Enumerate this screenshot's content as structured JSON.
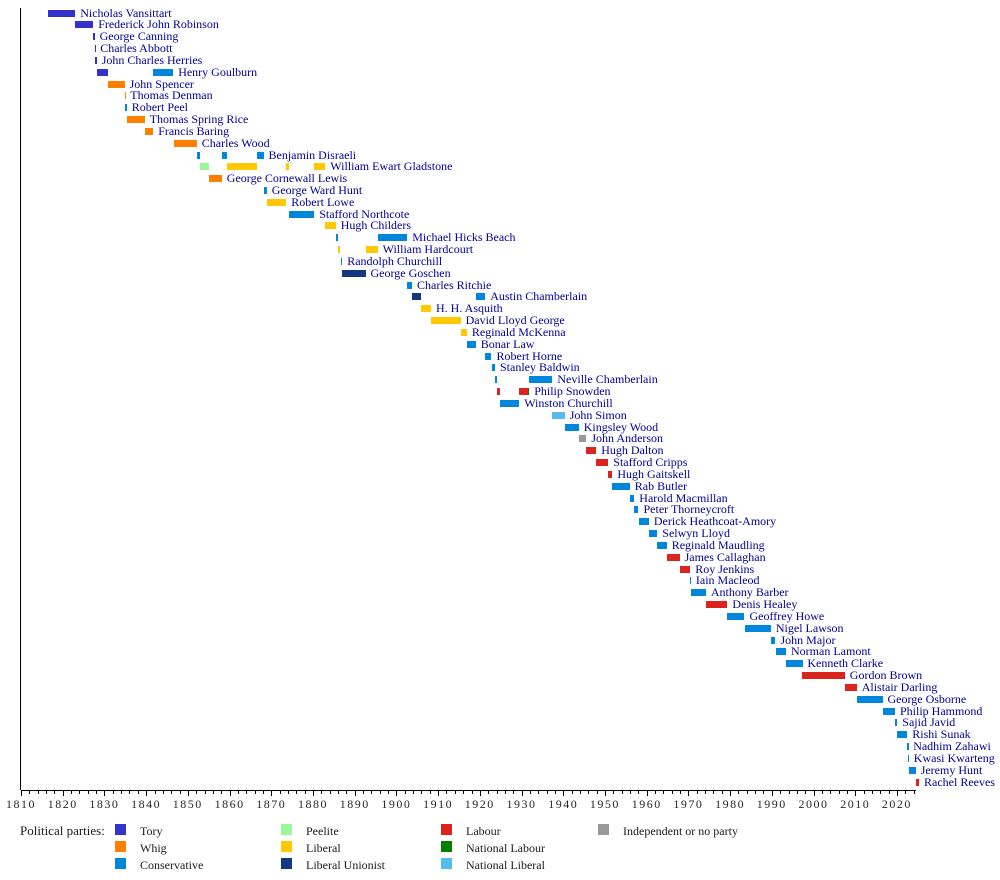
{
  "colors": {
    "name_text": "#000099",
    "axis_text": "#262626",
    "legend_text": "#1a1a1a",
    "axis_line": "#000000"
  },
  "chart_data": {
    "type": "bar",
    "subtype": "timeline-gantt",
    "title": "",
    "xlabel": "",
    "ylabel": "",
    "x_axis": {
      "min": 1810,
      "max": 2025,
      "minor_tick_step": 2,
      "tick_labels": [
        "1810",
        "1820",
        "1830",
        "1840",
        "1850",
        "1860",
        "1870",
        "1880",
        "1890",
        "1900",
        "1910",
        "1920",
        "1930",
        "1940",
        "1950",
        "1960",
        "1970",
        "1980",
        "1990",
        "2000",
        "2010",
        "2020"
      ]
    },
    "legend": {
      "title": "Political parties:",
      "columns": [
        [
          "Tory",
          "Whig",
          "Conservative"
        ],
        [
          "Peelite",
          "Liberal",
          "Liberal Unionist"
        ],
        [
          "Labour",
          "National Labour",
          "National Liberal"
        ],
        [
          "Independent or no party"
        ]
      ]
    },
    "parties": {
      "Tory": "#3333CC",
      "Whig": "#FF7F00",
      "Conservative": "#0087DC",
      "Peelite": "#99F999",
      "Liberal": "#FFC800",
      "Liberal Unionist": "#14387F",
      "Labour": "#DC241F",
      "National Labour": "#008000",
      "National Liberal": "#56BCEC",
      "Independent or no party": "#999999"
    },
    "chancellors": [
      {
        "name": "Nicholas Vansittart",
        "terms": [
          {
            "party": "Tory",
            "start": 1816.5,
            "end": 1823.0
          }
        ]
      },
      {
        "name": "Frederick John Robinson",
        "terms": [
          {
            "party": "Tory",
            "start": 1823.0,
            "end": 1827.3
          }
        ]
      },
      {
        "name": "George Canning",
        "terms": [
          {
            "party": "Tory",
            "start": 1827.3,
            "end": 1827.65
          }
        ]
      },
      {
        "name": "Charles Abbott",
        "terms": [
          {
            "party": "Tory",
            "start": 1827.65,
            "end": 1827.8
          }
        ]
      },
      {
        "name": "John Charles Herries",
        "terms": [
          {
            "party": "Tory",
            "start": 1827.8,
            "end": 1828.15
          }
        ]
      },
      {
        "name": "Henry Goulburn",
        "terms": [
          {
            "party": "Tory",
            "start": 1828.15,
            "end": 1830.9
          },
          {
            "party": "Conservative",
            "start": 1841.7,
            "end": 1846.5
          }
        ]
      },
      {
        "name": "John Spencer",
        "terms": [
          {
            "party": "Whig",
            "start": 1830.9,
            "end": 1834.85
          }
        ]
      },
      {
        "name": "Thomas Denman",
        "terms": [
          {
            "party": "Whig",
            "start": 1834.85,
            "end": 1835.0
          }
        ]
      },
      {
        "name": "Robert Peel",
        "terms": [
          {
            "party": "Conservative",
            "start": 1834.95,
            "end": 1835.35
          }
        ]
      },
      {
        "name": "Thomas Spring Rice",
        "terms": [
          {
            "party": "Whig",
            "start": 1835.35,
            "end": 1839.65
          }
        ]
      },
      {
        "name": "Francis Baring",
        "terms": [
          {
            "party": "Whig",
            "start": 1839.65,
            "end": 1841.7
          }
        ]
      },
      {
        "name": "Charles Wood",
        "terms": [
          {
            "party": "Whig",
            "start": 1846.55,
            "end": 1852.15
          }
        ]
      },
      {
        "name": "Benjamin Disraeli",
        "terms": [
          {
            "party": "Conservative",
            "start": 1852.15,
            "end": 1852.95
          },
          {
            "party": "Conservative",
            "start": 1858.15,
            "end": 1859.45
          },
          {
            "party": "Conservative",
            "start": 1866.5,
            "end": 1868.15
          }
        ]
      },
      {
        "name": "William Ewart Gladstone",
        "terms": [
          {
            "party": "Peelite",
            "start": 1852.95,
            "end": 1855.1
          },
          {
            "party": "Liberal",
            "start": 1859.45,
            "end": 1866.5
          },
          {
            "party": "Liberal",
            "start": 1873.6,
            "end": 1874.15
          },
          {
            "party": "Liberal",
            "start": 1880.3,
            "end": 1882.95
          }
        ]
      },
      {
        "name": "George Cornewall Lewis",
        "terms": [
          {
            "party": "Whig",
            "start": 1855.1,
            "end": 1858.15
          }
        ]
      },
      {
        "name": "George Ward Hunt",
        "terms": [
          {
            "party": "Conservative",
            "start": 1868.15,
            "end": 1868.9
          }
        ]
      },
      {
        "name": "Robert Lowe",
        "terms": [
          {
            "party": "Liberal",
            "start": 1868.9,
            "end": 1873.6
          }
        ]
      },
      {
        "name": "Stafford Northcote",
        "terms": [
          {
            "party": "Conservative",
            "start": 1874.15,
            "end": 1880.3
          }
        ]
      },
      {
        "name": "Hugh Childers",
        "terms": [
          {
            "party": "Liberal",
            "start": 1882.95,
            "end": 1885.45
          }
        ]
      },
      {
        "name": "Michael Hicks Beach",
        "terms": [
          {
            "party": "Conservative",
            "start": 1885.45,
            "end": 1886.1
          },
          {
            "party": "Conservative",
            "start": 1895.5,
            "end": 1902.6
          }
        ]
      },
      {
        "name": "William Hardcourt",
        "terms": [
          {
            "party": "Liberal",
            "start": 1886.1,
            "end": 1886.6
          },
          {
            "party": "Liberal",
            "start": 1892.6,
            "end": 1895.5
          }
        ]
      },
      {
        "name": "Randolph Churchill",
        "terms": [
          {
            "party": "Conservative",
            "start": 1886.6,
            "end": 1887.0
          }
        ]
      },
      {
        "name": "George Goschen",
        "terms": [
          {
            "party": "Liberal Unionist",
            "start": 1887.0,
            "end": 1892.6
          }
        ]
      },
      {
        "name": "Charles Ritchie",
        "terms": [
          {
            "party": "Conservative",
            "start": 1902.6,
            "end": 1903.75
          }
        ]
      },
      {
        "name": "Austin Chamberlain",
        "terms": [
          {
            "party": "Liberal Unionist",
            "start": 1903.75,
            "end": 1905.95
          },
          {
            "party": "Conservative",
            "start": 1919.05,
            "end": 1921.3
          }
        ]
      },
      {
        "name": "H. H. Asquith",
        "terms": [
          {
            "party": "Liberal",
            "start": 1905.95,
            "end": 1908.3
          }
        ]
      },
      {
        "name": "David Lloyd George",
        "terms": [
          {
            "party": "Liberal",
            "start": 1908.3,
            "end": 1915.4
          }
        ]
      },
      {
        "name": "Reginald McKenna",
        "terms": [
          {
            "party": "Liberal",
            "start": 1915.4,
            "end": 1916.9
          }
        ]
      },
      {
        "name": "Bonar Law",
        "terms": [
          {
            "party": "Conservative",
            "start": 1916.9,
            "end": 1919.05
          }
        ]
      },
      {
        "name": "Robert Horne",
        "terms": [
          {
            "party": "Conservative",
            "start": 1921.3,
            "end": 1922.8
          }
        ]
      },
      {
        "name": "Stanley Baldwin",
        "terms": [
          {
            "party": "Conservative",
            "start": 1922.8,
            "end": 1923.65
          }
        ]
      },
      {
        "name": "Neville Chamberlain",
        "terms": [
          {
            "party": "Conservative",
            "start": 1923.65,
            "end": 1924.05
          },
          {
            "party": "Conservative",
            "start": 1931.85,
            "end": 1937.4
          }
        ]
      },
      {
        "name": "Philip Snowden",
        "terms": [
          {
            "party": "Labour",
            "start": 1924.05,
            "end": 1924.85
          },
          {
            "party": "Labour",
            "start": 1929.45,
            "end": 1931.6
          },
          {
            "party": "National Labour",
            "start": 1931.6,
            "end": 1931.85
          }
        ]
      },
      {
        "name": "Winston Churchill",
        "terms": [
          {
            "party": "Conservative",
            "start": 1924.85,
            "end": 1929.45
          }
        ]
      },
      {
        "name": "John Simon",
        "terms": [
          {
            "party": "National Liberal",
            "start": 1937.4,
            "end": 1940.35
          }
        ]
      },
      {
        "name": "Kingsley Wood",
        "terms": [
          {
            "party": "Conservative",
            "start": 1940.35,
            "end": 1943.7
          }
        ]
      },
      {
        "name": "John Anderson",
        "terms": [
          {
            "party": "Independent or no party",
            "start": 1943.7,
            "end": 1945.55
          }
        ]
      },
      {
        "name": "Hugh Dalton",
        "terms": [
          {
            "party": "Labour",
            "start": 1945.55,
            "end": 1947.9
          }
        ]
      },
      {
        "name": "Stafford Cripps",
        "terms": [
          {
            "party": "Labour",
            "start": 1947.9,
            "end": 1950.8
          }
        ]
      },
      {
        "name": "Hugh Gaitskell",
        "terms": [
          {
            "party": "Labour",
            "start": 1950.8,
            "end": 1951.8
          }
        ]
      },
      {
        "name": "Rab Butler",
        "terms": [
          {
            "party": "Conservative",
            "start": 1951.8,
            "end": 1955.95
          }
        ]
      },
      {
        "name": "Harold Macmillan",
        "terms": [
          {
            "party": "Conservative",
            "start": 1955.95,
            "end": 1957.05
          }
        ]
      },
      {
        "name": "Peter Thorneycroft",
        "terms": [
          {
            "party": "Conservative",
            "start": 1957.05,
            "end": 1958.05
          }
        ]
      },
      {
        "name": "Derick Heathcoat-Amory",
        "terms": [
          {
            "party": "Conservative",
            "start": 1958.05,
            "end": 1960.55
          }
        ]
      },
      {
        "name": "Selwyn Lloyd",
        "terms": [
          {
            "party": "Conservative",
            "start": 1960.55,
            "end": 1962.55
          }
        ]
      },
      {
        "name": "Reginald Maudling",
        "terms": [
          {
            "party": "Conservative",
            "start": 1962.55,
            "end": 1964.8
          }
        ]
      },
      {
        "name": "James Callaghan",
        "terms": [
          {
            "party": "Labour",
            "start": 1964.8,
            "end": 1967.9
          }
        ]
      },
      {
        "name": "Roy Jenkins",
        "terms": [
          {
            "party": "Labour",
            "start": 1967.9,
            "end": 1970.45
          }
        ]
      },
      {
        "name": "Iain Macleod",
        "terms": [
          {
            "party": "Conservative",
            "start": 1970.45,
            "end": 1970.6
          }
        ]
      },
      {
        "name": "Anthony Barber",
        "terms": [
          {
            "party": "Conservative",
            "start": 1970.6,
            "end": 1974.2
          }
        ]
      },
      {
        "name": "Denis Healey",
        "terms": [
          {
            "party": "Labour",
            "start": 1974.2,
            "end": 1979.35
          }
        ]
      },
      {
        "name": "Geoffrey Howe",
        "terms": [
          {
            "party": "Conservative",
            "start": 1979.35,
            "end": 1983.45
          }
        ]
      },
      {
        "name": "Nigel Lawson",
        "terms": [
          {
            "party": "Conservative",
            "start": 1983.45,
            "end": 1989.8
          }
        ]
      },
      {
        "name": "John Major",
        "terms": [
          {
            "party": "Conservative",
            "start": 1989.8,
            "end": 1990.9
          }
        ]
      },
      {
        "name": "Norman Lamont",
        "terms": [
          {
            "party": "Conservative",
            "start": 1990.9,
            "end": 1993.4
          }
        ]
      },
      {
        "name": "Kenneth Clarke",
        "terms": [
          {
            "party": "Conservative",
            "start": 1993.4,
            "end": 1997.35
          }
        ]
      },
      {
        "name": "Gordon Brown",
        "terms": [
          {
            "party": "Labour",
            "start": 1997.35,
            "end": 2007.5
          }
        ]
      },
      {
        "name": "Alistair Darling",
        "terms": [
          {
            "party": "Labour",
            "start": 2007.5,
            "end": 2010.35
          }
        ]
      },
      {
        "name": "George Osborne",
        "terms": [
          {
            "party": "Conservative",
            "start": 2010.35,
            "end": 2016.55
          }
        ]
      },
      {
        "name": "Philip Hammond",
        "terms": [
          {
            "party": "Conservative",
            "start": 2016.55,
            "end": 2019.55
          }
        ]
      },
      {
        "name": "Sajid Javid",
        "terms": [
          {
            "party": "Conservative",
            "start": 2019.55,
            "end": 2020.1
          }
        ]
      },
      {
        "name": "Rishi Sunak",
        "terms": [
          {
            "party": "Conservative",
            "start": 2020.1,
            "end": 2022.5
          }
        ]
      },
      {
        "name": "Nadhim Zahawi",
        "terms": [
          {
            "party": "Conservative",
            "start": 2022.5,
            "end": 2022.7
          }
        ]
      },
      {
        "name": "Kwasi Kwarteng",
        "terms": [
          {
            "party": "Conservative",
            "start": 2022.7,
            "end": 2022.85
          }
        ]
      },
      {
        "name": "Jeremy Hunt",
        "terms": [
          {
            "party": "Conservative",
            "start": 2022.85,
            "end": 2024.5
          }
        ]
      },
      {
        "name": "Rachel Reeves",
        "terms": [
          {
            "party": "Labour",
            "start": 2024.5,
            "end": 2025.3
          }
        ]
      }
    ]
  }
}
